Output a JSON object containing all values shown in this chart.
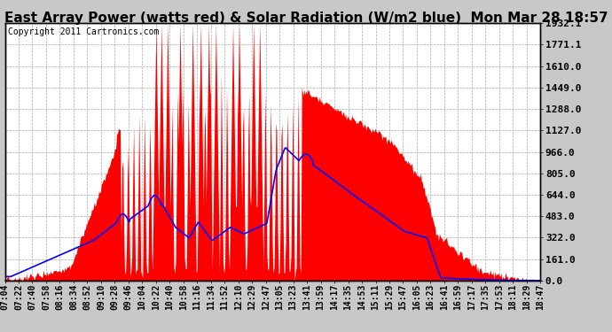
{
  "title": "East Array Power (watts red) & Solar Radiation (W/m2 blue)  Mon Mar 28 18:57",
  "copyright": "Copyright 2011 Cartronics.com",
  "ylabel_right": [
    "1932.1",
    "1771.1",
    "1610.0",
    "1449.0",
    "1288.0",
    "1127.0",
    "966.0",
    "805.0",
    "644.0",
    "483.0",
    "322.0",
    "161.0",
    "0.0"
  ],
  "yvals": [
    1932.1,
    1771.1,
    1610.0,
    1449.0,
    1288.0,
    1127.0,
    966.0,
    805.0,
    644.0,
    483.0,
    322.0,
    161.0,
    0.0
  ],
  "ymax": 1932.1,
  "ymin": 0.0,
  "bg_color": "#ffffff",
  "plot_bg": "#ffffff",
  "x_labels": [
    "07:04",
    "07:22",
    "07:40",
    "07:58",
    "08:16",
    "08:34",
    "08:52",
    "09:10",
    "09:28",
    "09:46",
    "10:04",
    "10:22",
    "10:40",
    "10:58",
    "11:16",
    "11:34",
    "11:52",
    "12:10",
    "12:29",
    "12:47",
    "13:05",
    "13:23",
    "13:41",
    "13:59",
    "14:17",
    "14:35",
    "14:53",
    "15:11",
    "15:29",
    "15:47",
    "16:05",
    "16:23",
    "16:41",
    "16:59",
    "17:17",
    "17:35",
    "17:53",
    "18:11",
    "18:29",
    "18:47"
  ],
  "n_points": 600,
  "title_fontsize": 11,
  "tick_fontsize": 7,
  "copyright_fontsize": 7,
  "red_color": "#ff0000",
  "blue_color": "#0000ff",
  "grid_color": "#aaaaaa",
  "outer_bg": "#c8c8c8"
}
